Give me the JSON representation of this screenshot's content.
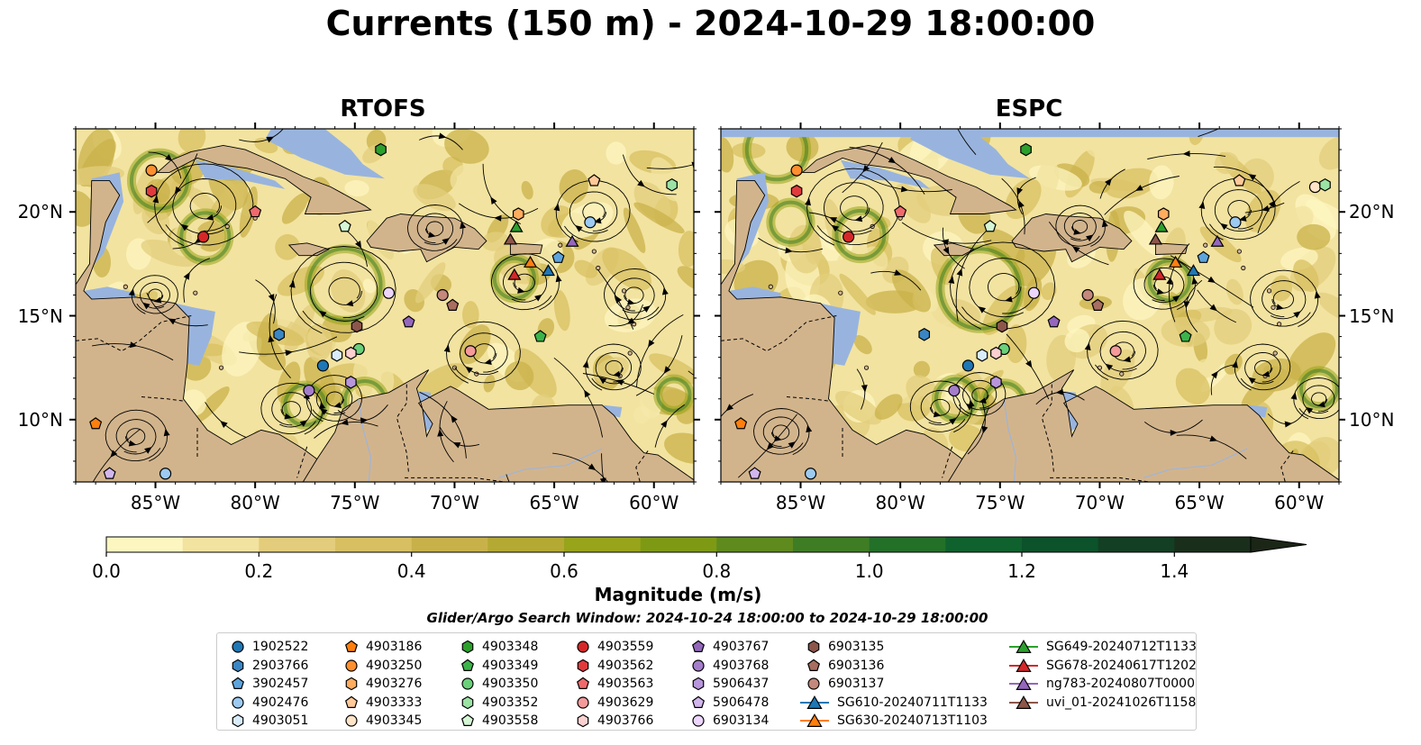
{
  "title": "Currents (150 m) - 2024-10-29 18:00:00",
  "panels": [
    {
      "id": "rtofs",
      "title": "RTOFS"
    },
    {
      "id": "espc",
      "title": "ESPC"
    }
  ],
  "map": {
    "lon_range": [
      -89,
      -58
    ],
    "lat_range": [
      7,
      24
    ],
    "x_ticks": [
      "85°W",
      "80°W",
      "75°W",
      "70°W",
      "65°W",
      "60°W"
    ],
    "y_ticks": [
      "20°N",
      "15°N",
      "10°N"
    ],
    "colors": {
      "land": "#d2b48c",
      "shallow": "#98b4de",
      "coast": "#000000"
    }
  },
  "colorbar": {
    "label": "Magnitude (m/s)",
    "ticks": [
      "0.0",
      "0.2",
      "0.4",
      "0.6",
      "0.8",
      "1.0",
      "1.2",
      "1.4"
    ],
    "range": [
      0,
      1.5
    ],
    "extend": "max",
    "colors": [
      "#fdf6c0",
      "#f2e3a0",
      "#e3cd7c",
      "#d8c062",
      "#c9b14a",
      "#b4a932",
      "#98a41a",
      "#7e9a14",
      "#5e8a1e",
      "#3f7d25",
      "#237029",
      "#0f612d",
      "#0c522b",
      "#133f24",
      "#1a2e1c",
      "#1b2616"
    ]
  },
  "search_window": "Glider/Argo Search Window: 2024-10-24 18:00:00 to 2024-10-29 18:00:00",
  "legend": [
    {
      "label": "1902522",
      "marker": "circle",
      "color": "#1f77b4"
    },
    {
      "label": "2903766",
      "marker": "hexagon",
      "color": "#3a86c4"
    },
    {
      "label": "3902457",
      "marker": "pentagon",
      "color": "#5ea4dc"
    },
    {
      "label": "4902476",
      "marker": "circle",
      "color": "#9ccaf0"
    },
    {
      "label": "4903051",
      "marker": "hexagon",
      "color": "#d8ecfb"
    },
    {
      "label": "4903186",
      "marker": "pentagon",
      "color": "#ff7f0e"
    },
    {
      "label": "4903250",
      "marker": "circle",
      "color": "#ff8f2e"
    },
    {
      "label": "4903276",
      "marker": "hexagon",
      "color": "#ffac5e"
    },
    {
      "label": "4903333",
      "marker": "pentagon",
      "color": "#ffc998"
    },
    {
      "label": "4903345",
      "marker": "circle",
      "color": "#ffe4c8"
    },
    {
      "label": "4903348",
      "marker": "hexagon",
      "color": "#2ca02c"
    },
    {
      "label": "4903349",
      "marker": "pentagon",
      "color": "#3cb44a"
    },
    {
      "label": "4903350",
      "marker": "circle",
      "color": "#6bd07a"
    },
    {
      "label": "4903352",
      "marker": "hexagon",
      "color": "#9be3a4"
    },
    {
      "label": "4903558",
      "marker": "pentagon",
      "color": "#d5f7d5"
    },
    {
      "label": "4903559",
      "marker": "circle",
      "color": "#d62728"
    },
    {
      "label": "4903562",
      "marker": "hexagon",
      "color": "#e03a3d"
    },
    {
      "label": "4903563",
      "marker": "pentagon",
      "color": "#ee6a6c"
    },
    {
      "label": "4903629",
      "marker": "circle",
      "color": "#f59a9a"
    },
    {
      "label": "4903766",
      "marker": "hexagon",
      "color": "#fcd0d0"
    },
    {
      "label": "4903767",
      "marker": "pentagon",
      "color": "#9467bd"
    },
    {
      "label": "4903768",
      "marker": "circle",
      "color": "#a57ecb"
    },
    {
      "label": "5906437",
      "marker": "hexagon",
      "color": "#b896dc"
    },
    {
      "label": "5906478",
      "marker": "pentagon",
      "color": "#d2b6ee"
    },
    {
      "label": "6903134",
      "marker": "circle",
      "color": "#ecd6fb"
    },
    {
      "label": "6903135",
      "marker": "hexagon",
      "color": "#8c564b"
    },
    {
      "label": "6903136",
      "marker": "pentagon",
      "color": "#a86e60"
    },
    {
      "label": "6903137",
      "marker": "circle",
      "color": "#c4897c"
    },
    {
      "label": "SG610-20240711T1133",
      "marker": "triangle",
      "color": "#1f77b4"
    },
    {
      "label": "SG630-20240713T1103",
      "marker": "triangle",
      "color": "#ff7f0e"
    },
    {
      "label": "SG649-20240712T1133",
      "marker": "triangle",
      "color": "#2ca02c"
    },
    {
      "label": "SG678-20240617T1202",
      "marker": "triangle",
      "color": "#d62728"
    },
    {
      "label": "ng783-20240807T0000",
      "marker": "triangle",
      "color": "#9467bd"
    },
    {
      "label": "uvi_01-20241026T1158",
      "marker": "triangle",
      "color": "#8c564b"
    }
  ],
  "chart_data": {
    "type": "map",
    "title": "Currents (150 m) - 2024-10-29 18:00:00",
    "colorbar_label": "Magnitude (m/s)",
    "colorbar_range": [
      0,
      1.5
    ],
    "x_range": [
      -89,
      -58
    ],
    "y_range": [
      7,
      24
    ],
    "series": [
      {
        "name": "1902522",
        "points": {
          "rtofs": [
            [
              -76.6,
              12.6
            ]
          ],
          "espc": [
            [
              -76.6,
              12.6
            ]
          ]
        }
      },
      {
        "name": "2903766",
        "points": {
          "rtofs": [
            [
              -78.8,
              14.1
            ]
          ],
          "espc": [
            [
              -78.8,
              14.1
            ]
          ]
        }
      },
      {
        "name": "3902457",
        "points": {
          "rtofs": [
            [
              -64.8,
              17.8
            ]
          ],
          "espc": [
            [
              -64.8,
              17.8
            ]
          ]
        }
      },
      {
        "name": "4902476",
        "points": {
          "rtofs": [
            [
              -84.5,
              7.4
            ],
            [
              -63.2,
              19.5
            ]
          ],
          "espc": [
            [
              -84.5,
              7.4
            ],
            [
              -63.2,
              19.5
            ]
          ]
        }
      },
      {
        "name": "4903051",
        "points": {
          "rtofs": [
            [
              -75.9,
              13.1
            ]
          ],
          "espc": [
            [
              -75.9,
              13.1
            ]
          ]
        }
      },
      {
        "name": "4903186",
        "points": {
          "rtofs": [
            [
              -88.0,
              9.8
            ]
          ],
          "espc": [
            [
              -88.0,
              9.8
            ]
          ]
        }
      },
      {
        "name": "4903250",
        "points": {
          "rtofs": [
            [
              -85.2,
              22.0
            ]
          ],
          "espc": [
            [
              -85.2,
              22.0
            ]
          ]
        }
      },
      {
        "name": "4903276",
        "points": {
          "rtofs": [
            [
              -66.8,
              19.9
            ]
          ],
          "espc": [
            [
              -66.8,
              19.9
            ]
          ]
        }
      },
      {
        "name": "4903333",
        "points": {
          "rtofs": [
            [
              -63.0,
              21.5
            ]
          ],
          "espc": [
            [
              -63.0,
              21.5
            ]
          ]
        }
      },
      {
        "name": "4903345",
        "points": {
          "rtofs": [],
          "espc": [
            [
              -59.2,
              21.2
            ]
          ]
        }
      },
      {
        "name": "4903348",
        "points": {
          "rtofs": [
            [
              -73.7,
              23.0
            ]
          ],
          "espc": [
            [
              -73.7,
              23.0
            ]
          ]
        }
      },
      {
        "name": "4903349",
        "points": {
          "rtofs": [
            [
              -65.7,
              14.0
            ]
          ],
          "espc": [
            [
              -65.7,
              14.0
            ]
          ]
        }
      },
      {
        "name": "4903350",
        "points": {
          "rtofs": [
            [
              -74.8,
              13.4
            ]
          ],
          "espc": [
            [
              -74.8,
              13.4
            ]
          ]
        }
      },
      {
        "name": "4903352",
        "points": {
          "rtofs": [
            [
              -59.1,
              21.3
            ]
          ],
          "espc": [
            [
              -58.7,
              21.3
            ]
          ]
        }
      },
      {
        "name": "4903558",
        "points": {
          "rtofs": [
            [
              -75.5,
              19.3
            ]
          ],
          "espc": [
            [
              -75.5,
              19.3
            ]
          ]
        }
      },
      {
        "name": "4903559",
        "points": {
          "rtofs": [
            [
              -82.6,
              18.8
            ]
          ],
          "espc": [
            [
              -82.6,
              18.8
            ]
          ]
        }
      },
      {
        "name": "4903562",
        "points": {
          "rtofs": [
            [
              -85.2,
              21.0
            ]
          ],
          "espc": [
            [
              -85.2,
              21.0
            ]
          ]
        }
      },
      {
        "name": "4903563",
        "points": {
          "rtofs": [
            [
              -80.0,
              20.0
            ]
          ],
          "espc": [
            [
              -80.0,
              20.0
            ]
          ]
        }
      },
      {
        "name": "4903629",
        "points": {
          "rtofs": [
            [
              -69.2,
              13.3
            ]
          ],
          "espc": [
            [
              -69.2,
              13.3
            ]
          ]
        }
      },
      {
        "name": "4903766",
        "points": {
          "rtofs": [
            [
              -75.2,
              13.2
            ]
          ],
          "espc": [
            [
              -75.2,
              13.2
            ]
          ]
        }
      },
      {
        "name": "4903767",
        "points": {
          "rtofs": [
            [
              -72.3,
              14.7
            ]
          ],
          "espc": [
            [
              -72.3,
              14.7
            ]
          ]
        }
      },
      {
        "name": "4903768",
        "points": {
          "rtofs": [
            [
              -77.3,
              11.4
            ]
          ],
          "espc": [
            [
              -77.3,
              11.4
            ]
          ]
        }
      },
      {
        "name": "5906437",
        "points": {
          "rtofs": [
            [
              -75.2,
              11.8
            ]
          ],
          "espc": [
            [
              -75.2,
              11.8
            ]
          ]
        }
      },
      {
        "name": "5906478",
        "points": {
          "rtofs": [
            [
              -87.3,
              7.4
            ]
          ],
          "espc": [
            [
              -87.3,
              7.4
            ]
          ]
        }
      },
      {
        "name": "6903134",
        "points": {
          "rtofs": [
            [
              -73.3,
              16.1
            ]
          ],
          "espc": [
            [
              -73.3,
              16.1
            ]
          ]
        }
      },
      {
        "name": "6903135",
        "points": {
          "rtofs": [
            [
              -74.9,
              14.5
            ]
          ],
          "espc": [
            [
              -74.9,
              14.5
            ]
          ]
        }
      },
      {
        "name": "6903136",
        "points": {
          "rtofs": [
            [
              -70.1,
              15.5
            ]
          ],
          "espc": [
            [
              -70.1,
              15.5
            ]
          ]
        }
      },
      {
        "name": "6903137",
        "points": {
          "rtofs": [
            [
              -70.6,
              16.0
            ]
          ],
          "espc": [
            [
              -70.6,
              16.0
            ]
          ]
        }
      },
      {
        "name": "SG610-20240711T1133",
        "points": {
          "rtofs": [
            [
              -65.3,
              17.2
            ]
          ],
          "espc": [
            [
              -65.3,
              17.2
            ]
          ]
        }
      },
      {
        "name": "SG630-20240713T1103",
        "points": {
          "rtofs": [
            [
              -66.2,
              17.6
            ]
          ],
          "espc": [
            [
              -66.2,
              17.6
            ]
          ]
        }
      },
      {
        "name": "SG649-20240712T1133",
        "points": {
          "rtofs": [
            [
              -66.9,
              19.3
            ]
          ],
          "espc": [
            [
              -66.9,
              19.3
            ]
          ]
        }
      },
      {
        "name": "SG678-20240617T1202",
        "points": {
          "rtofs": [
            [
              -67.0,
              17.0
            ]
          ],
          "espc": [
            [
              -67.0,
              17.0
            ]
          ]
        }
      },
      {
        "name": "ng783-20240807T0000",
        "points": {
          "rtofs": [
            [
              -64.1,
              18.6
            ]
          ],
          "espc": [
            [
              -64.1,
              18.6
            ]
          ]
        }
      },
      {
        "name": "uvi_01-20241026T1158",
        "points": {
          "rtofs": [
            [
              -67.2,
              18.7
            ]
          ],
          "espc": [
            [
              -67.2,
              18.7
            ]
          ]
        }
      }
    ]
  }
}
